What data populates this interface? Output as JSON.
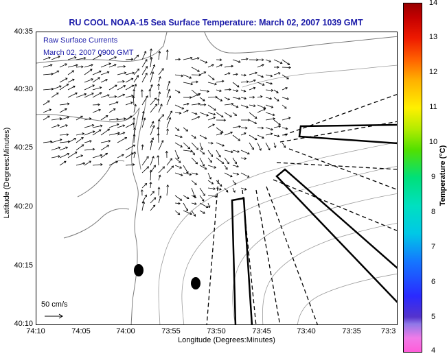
{
  "title": "RU COOL  NOAA-15  Sea Surface Temperature:  March 02, 2007 1039 GMT",
  "legend": {
    "line1": "Raw Surface Currents",
    "line2": "March 02, 2007 0900 GMT"
  },
  "axes": {
    "xlabel": "Longitude (Degrees:Minutes)",
    "ylabel": "Latitude (Degrees:Minutes)",
    "xticks": [
      "74:10",
      "74:05",
      "74:00",
      "73:55",
      "73:50",
      "73:45",
      "73:40",
      "73:35",
      "73:3"
    ],
    "yticks": [
      "40:35",
      "40:30",
      "40:25",
      "40:20",
      "40:15",
      "40:10"
    ]
  },
  "colorbar": {
    "label": "Temperature (°C)",
    "ticks": [
      "14",
      "13",
      "12",
      "11",
      "10",
      "9",
      "8",
      "7",
      "6",
      "5",
      "4"
    ]
  },
  "scale": {
    "label": "50 cm/s"
  },
  "colors": {
    "title": "#1a1aa8",
    "land": "#ffffff",
    "contours": "#8c8c8c"
  }
}
